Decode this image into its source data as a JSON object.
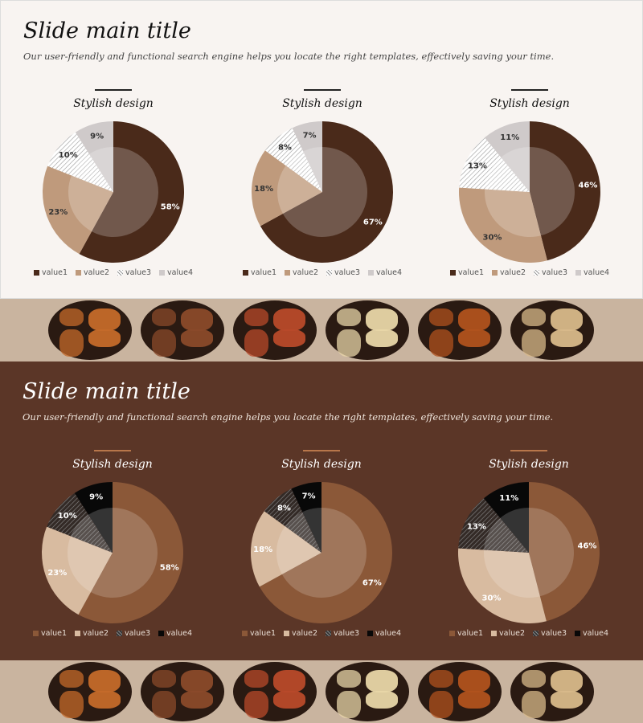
{
  "slides": [
    {
      "id": "light",
      "title": "Slide main title",
      "subtitle": "Our user-friendly and functional search engine helps you locate the right templates, effectively saving your time."
    },
    {
      "id": "dark",
      "title": "Slide main title",
      "subtitle": "Our user-friendly and functional search engine helps you locate the right templates, effectively saving your time."
    }
  ],
  "palettes": {
    "light": [
      "#4a2a1a",
      "#bf9a7c",
      "#ffffff",
      "#cfcaca"
    ],
    "dark": [
      "#8b5838",
      "#d8bba0",
      "#332a26",
      "#080808"
    ]
  },
  "inner_overlay": {
    "light": "rgba(255,255,255,0.22)",
    "dark": "rgba(255,255,255,0.18)"
  },
  "label_colors": {
    "light": [
      "#ffffff",
      "#333333",
      "#333333",
      "#333333"
    ],
    "dark": [
      "#ffffff",
      "#ffffff",
      "#ffffff",
      "#ffffff"
    ]
  },
  "chart_data": [
    {
      "type": "pie",
      "title": "Stylish design",
      "categories": [
        "value1",
        "value2",
        "value3",
        "value4"
      ],
      "values": [
        58,
        23,
        10,
        9
      ],
      "labels": [
        "58%",
        "23%",
        "10%",
        "9%"
      ]
    },
    {
      "type": "pie",
      "title": "Stylish design",
      "categories": [
        "value1",
        "value2",
        "value3",
        "value4"
      ],
      "values": [
        67,
        18,
        8,
        7
      ],
      "labels": [
        "67%",
        "18%",
        "8%",
        "7%"
      ]
    },
    {
      "type": "pie",
      "title": "Stylish design",
      "categories": [
        "value1",
        "value2",
        "value3",
        "value4"
      ],
      "values": [
        46,
        30,
        13,
        11
      ],
      "labels": [
        "46%",
        "30%",
        "13%",
        "11%"
      ]
    },
    {
      "type": "pie",
      "title": "Stylish design",
      "categories": [
        "value1",
        "value2",
        "value3",
        "value4"
      ],
      "values": [
        58,
        23,
        10,
        9
      ],
      "labels": [
        "58%",
        "23%",
        "10%",
        "9%"
      ]
    },
    {
      "type": "pie",
      "title": "Stylish design",
      "categories": [
        "value1",
        "value2",
        "value3",
        "value4"
      ],
      "values": [
        67,
        18,
        8,
        7
      ],
      "labels": [
        "67%",
        "18%",
        "8%",
        "7%"
      ]
    },
    {
      "type": "pie",
      "title": "Stylish design",
      "categories": [
        "value1",
        "value2",
        "value3",
        "value4"
      ],
      "values": [
        46,
        30,
        13,
        11
      ],
      "labels": [
        "46%",
        "30%",
        "13%",
        "11%"
      ]
    }
  ],
  "bowls": [
    {
      "name": "bowl-angelica",
      "food_color": "#c46a2a"
    },
    {
      "name": "bowl-dried-roots",
      "food_color": "#8a4a2a"
    },
    {
      "name": "bowl-sliced-herbs",
      "food_color": "#b84a2a"
    },
    {
      "name": "bowl-ginseng-slices",
      "food_color": "#e8d6a8"
    },
    {
      "name": "bowl-mushroom",
      "food_color": "#b0521e"
    },
    {
      "name": "bowl-bark-sticks",
      "food_color": "#d8b98a"
    }
  ]
}
